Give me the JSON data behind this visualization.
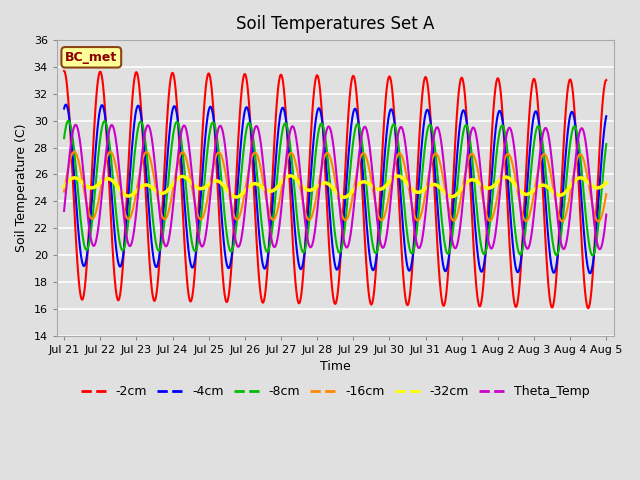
{
  "title": "Soil Temperatures Set A",
  "xlabel": "Time",
  "ylabel": "Soil Temperature (C)",
  "ylim": [
    14,
    36
  ],
  "yticks": [
    14,
    16,
    18,
    20,
    22,
    24,
    26,
    28,
    30,
    32,
    34,
    36
  ],
  "xtick_labels": [
    "Jul 21",
    "Jul 22",
    "Jul 23",
    "Jul 24",
    "Jul 25",
    "Jul 26",
    "Jul 27",
    "Jul 28",
    "Jul 29",
    "Jul 30",
    "Jul 31",
    "Aug 1",
    "Aug 2",
    "Aug 3",
    "Aug 4",
    "Aug 5"
  ],
  "annotation": "BC_met",
  "bg_color": "#e0e0e0",
  "grid_color": "#ffffff",
  "line_colors": {
    "-2cm": "#ff0000",
    "-4cm": "#0000ff",
    "-8cm": "#00bb00",
    "-16cm": "#ff8800",
    "-32cm": "#ffff00",
    "Theta_Temp": "#cc00cc"
  },
  "legend_order": [
    "-2cm",
    "-4cm",
    "-8cm",
    "-16cm",
    "-32cm",
    "Theta_Temp"
  ],
  "mean_temp": 25.2,
  "amp_2": 8.5,
  "amp_4": 6.0,
  "amp_8": 4.8,
  "amp_16": 2.5,
  "amp_32": 0.45,
  "amp_theta": 4.5,
  "phase_4": 0.05,
  "phase_8": 0.12,
  "phase_16": 0.28,
  "phase_theta": 0.32,
  "drift_rate": -0.045
}
